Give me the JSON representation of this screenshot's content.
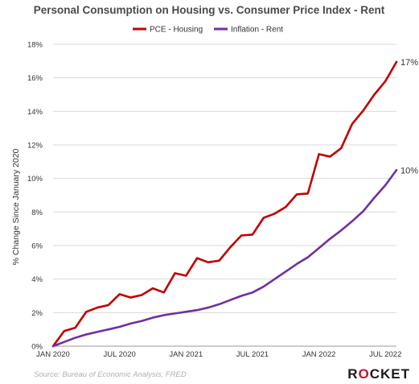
{
  "chart_data": {
    "type": "line",
    "title": "Personal Consumption on Housing vs. Consumer Price Index - Rent",
    "ylabel": "% Change Since January 2020",
    "xlabel": "",
    "ylim": [
      0,
      18
    ],
    "y_ticks": [
      "0%",
      "2%",
      "4%",
      "6%",
      "8%",
      "10%",
      "12%",
      "14%",
      "16%",
      "18%"
    ],
    "x_ticks": [
      {
        "index": 0,
        "label": "JAN 2020"
      },
      {
        "index": 6,
        "label": "JUL 2020"
      },
      {
        "index": 12,
        "label": "JAN 2021"
      },
      {
        "index": 18,
        "label": "JUL 2021"
      },
      {
        "index": 24,
        "label": "JAN 2022"
      },
      {
        "index": 30,
        "label": "JUL 2022"
      }
    ],
    "x": [
      "2020-01",
      "2020-02",
      "2020-03",
      "2020-04",
      "2020-05",
      "2020-06",
      "2020-07",
      "2020-08",
      "2020-09",
      "2020-10",
      "2020-11",
      "2020-12",
      "2021-01",
      "2021-02",
      "2021-03",
      "2021-04",
      "2021-05",
      "2021-06",
      "2021-07",
      "2021-08",
      "2021-09",
      "2021-10",
      "2021-11",
      "2021-12",
      "2022-01",
      "2022-02",
      "2022-03",
      "2022-04",
      "2022-05",
      "2022-06",
      "2022-07",
      "2022-08"
    ],
    "series": [
      {
        "name": "PCE - Housing",
        "color": "#c00000",
        "end_label": "17%",
        "values": [
          0,
          0.9,
          1.1,
          2.05,
          2.3,
          2.45,
          3.1,
          2.9,
          3.05,
          3.45,
          3.2,
          4.35,
          4.2,
          5.25,
          5.0,
          5.1,
          5.9,
          6.6,
          6.65,
          7.65,
          7.9,
          8.3,
          9.05,
          9.1,
          11.45,
          11.3,
          11.8,
          13.25,
          14.05,
          15.0,
          15.8,
          16.95
        ]
      },
      {
        "name": "Inflation - Rent",
        "color": "#7030a0",
        "end_label": "10%",
        "values": [
          0,
          0.25,
          0.5,
          0.7,
          0.85,
          1.0,
          1.15,
          1.35,
          1.5,
          1.7,
          1.85,
          1.95,
          2.05,
          2.15,
          2.3,
          2.5,
          2.75,
          3.0,
          3.2,
          3.55,
          4.0,
          4.45,
          4.9,
          5.3,
          5.85,
          6.4,
          6.9,
          7.45,
          8.05,
          8.85,
          9.6,
          10.5
        ]
      }
    ]
  },
  "footer": {
    "source": "Source: Bureau of Economic Analysis, FRED",
    "logo": "ROCKET"
  }
}
